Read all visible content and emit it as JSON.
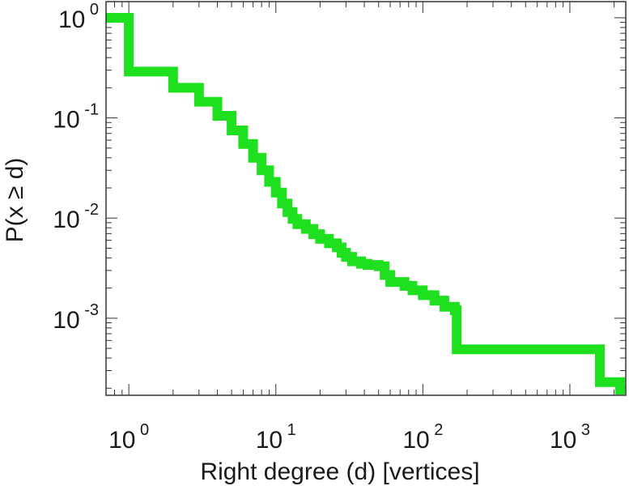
{
  "chart_data": {
    "type": "line",
    "title": "",
    "xlabel": "Right degree (d) [vertices]",
    "ylabel": "P(x ≥ d)",
    "x_scale": "log",
    "y_scale": "log",
    "xlim": [
      0.7,
      2400
    ],
    "ylim": [
      0.00017,
      1.45
    ],
    "x_ticks": [
      {
        "base": "10",
        "exp": "0",
        "value": 1
      },
      {
        "base": "10",
        "exp": "1",
        "value": 10
      },
      {
        "base": "10",
        "exp": "2",
        "value": 100
      },
      {
        "base": "10",
        "exp": "3",
        "value": 1000
      }
    ],
    "y_ticks": [
      {
        "base": "10",
        "exp": "0",
        "value": 1
      },
      {
        "base": "10",
        "exp": "-1",
        "value": 0.1
      },
      {
        "base": "10",
        "exp": "-2",
        "value": 0.01
      },
      {
        "base": "10",
        "exp": "-3",
        "value": 0.001
      }
    ],
    "grid": false,
    "series": [
      {
        "color": "#1fe01f",
        "step": "post",
        "points": [
          [
            0.7,
            1.0
          ],
          [
            1,
            0.29
          ],
          [
            2,
            0.2
          ],
          [
            3,
            0.145
          ],
          [
            4,
            0.105
          ],
          [
            5,
            0.075
          ],
          [
            6,
            0.055
          ],
          [
            7,
            0.04
          ],
          [
            8,
            0.03
          ],
          [
            9,
            0.023
          ],
          [
            10,
            0.018
          ],
          [
            11,
            0.014
          ],
          [
            12,
            0.0115
          ],
          [
            13,
            0.0098
          ],
          [
            14,
            0.0087
          ],
          [
            16,
            0.0078
          ],
          [
            18,
            0.0069
          ],
          [
            20,
            0.0062
          ],
          [
            23,
            0.0056
          ],
          [
            26,
            0.0051
          ],
          [
            28,
            0.0045
          ],
          [
            30,
            0.0041
          ],
          [
            33,
            0.0037
          ],
          [
            38,
            0.0035
          ],
          [
            42,
            0.0034
          ],
          [
            50,
            0.0033
          ],
          [
            55,
            0.0027
          ],
          [
            60,
            0.0023
          ],
          [
            75,
            0.0021
          ],
          [
            85,
            0.0019
          ],
          [
            100,
            0.0017
          ],
          [
            120,
            0.0015
          ],
          [
            140,
            0.0013
          ],
          [
            165,
            0.0012
          ],
          [
            170,
            0.00049
          ],
          [
            1600,
            0.00023
          ],
          [
            2200,
            0.00023
          ]
        ]
      }
    ]
  }
}
